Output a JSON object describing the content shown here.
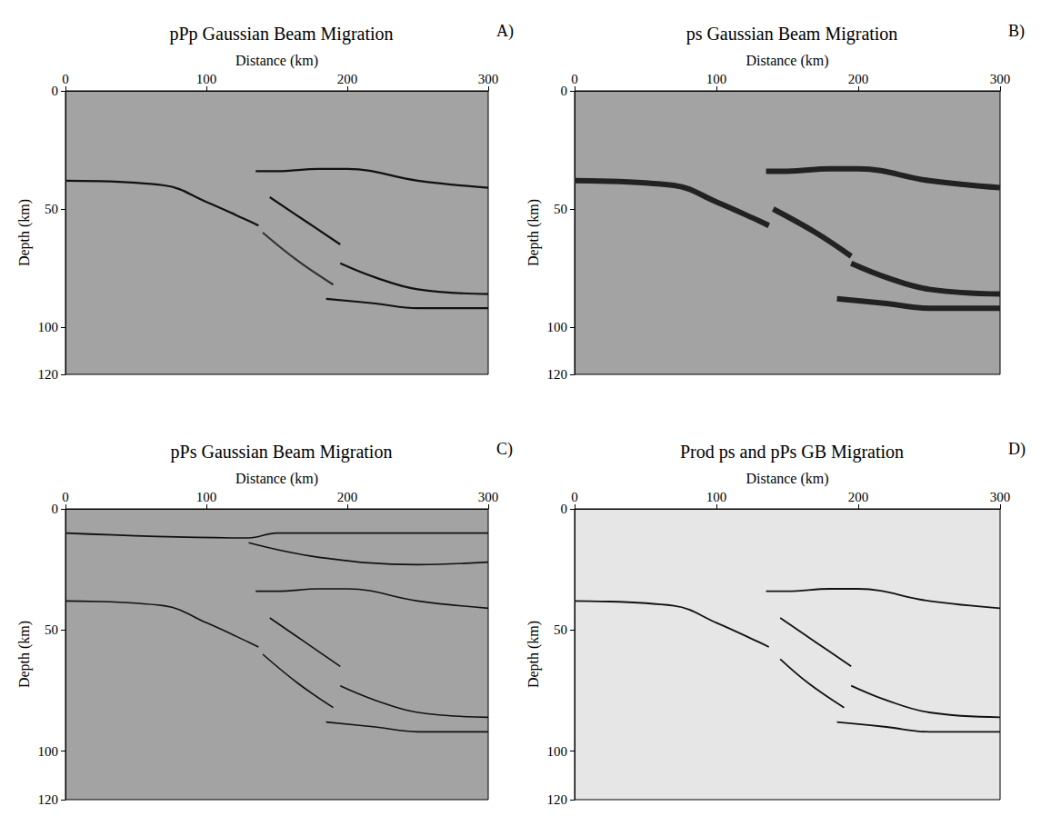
{
  "chart_data": [
    {
      "type": "line",
      "title": "pPp Gaussian Beam Migration",
      "panel": "A)",
      "x_label": "Distance (km)",
      "y_label": "Depth (km)",
      "xlim": [
        0,
        300
      ],
      "xticks": [
        0,
        100,
        200,
        300
      ],
      "ylim": [
        0,
        120
      ],
      "yticks": [
        0,
        50,
        100
      ],
      "series": [
        {
          "x": [
            0,
            70,
            100,
            130,
            137
          ],
          "values": [
            38,
            40,
            47,
            55,
            57
          ],
          "color": "#111111"
        },
        {
          "x": [
            135,
            150,
            180,
            200,
            250,
            300
          ],
          "values": [
            34,
            34,
            33,
            33,
            38,
            41
          ],
          "color": "#111111"
        },
        {
          "x": [
            145,
            170,
            195
          ],
          "values": [
            45,
            55,
            65
          ],
          "color": "#111111"
        },
        {
          "x": [
            195,
            220,
            250,
            300
          ],
          "values": [
            73,
            79,
            84,
            86
          ],
          "color": "#111111"
        },
        {
          "x": [
            140,
            165,
            190
          ],
          "values": [
            60,
            72,
            82
          ],
          "color": "#333333"
        },
        {
          "x": [
            185,
            220,
            250,
            300
          ],
          "values": [
            88,
            90,
            92,
            92
          ],
          "color": "#111111"
        }
      ]
    },
    {
      "type": "line",
      "title": "ps Gaussian Beam Migration",
      "panel": "B)",
      "x_label": "Distance (km)",
      "y_label": "Depth (km)",
      "xlim": [
        0,
        300
      ],
      "xticks": [
        0,
        100,
        200,
        300
      ],
      "ylim": [
        0,
        120
      ],
      "yticks": [
        0,
        50,
        100
      ],
      "series": [
        {
          "x": [
            0,
            70,
            100,
            130,
            137
          ],
          "values": [
            38,
            40,
            47,
            55,
            57
          ],
          "color": "#222222"
        },
        {
          "x": [
            135,
            150,
            180,
            200,
            250,
            300
          ],
          "values": [
            34,
            34,
            33,
            33,
            38,
            41
          ],
          "color": "#222222"
        },
        {
          "x": [
            140,
            170,
            195
          ],
          "values": [
            50,
            60,
            70
          ],
          "color": "#222222"
        },
        {
          "x": [
            195,
            220,
            250,
            300
          ],
          "values": [
            73,
            79,
            84,
            86
          ],
          "color": "#222222"
        },
        {
          "x": [
            185,
            220,
            250,
            300
          ],
          "values": [
            88,
            90,
            92,
            92
          ],
          "color": "#222222"
        }
      ]
    },
    {
      "type": "line",
      "title": "pPs Gaussian Beam Migration",
      "panel": "C)",
      "x_label": "Distance (km)",
      "y_label": "Depth (km)",
      "xlim": [
        0,
        300
      ],
      "xticks": [
        0,
        100,
        200,
        300
      ],
      "ylim": [
        0,
        120
      ],
      "yticks": [
        0,
        50,
        100
      ],
      "series": [
        {
          "x": [
            0,
            130,
            150,
            300
          ],
          "values": [
            10,
            12,
            10,
            10
          ],
          "color": "#111111"
        },
        {
          "x": [
            130,
            180,
            250,
            300
          ],
          "values": [
            14,
            20,
            23,
            22
          ],
          "color": "#111111"
        },
        {
          "x": [
            0,
            70,
            100,
            130,
            137
          ],
          "values": [
            38,
            40,
            47,
            55,
            57
          ],
          "color": "#111111"
        },
        {
          "x": [
            135,
            150,
            180,
            200,
            250,
            300
          ],
          "values": [
            34,
            34,
            33,
            33,
            38,
            41
          ],
          "color": "#111111"
        },
        {
          "x": [
            145,
            170,
            195
          ],
          "values": [
            45,
            55,
            65
          ],
          "color": "#111111"
        },
        {
          "x": [
            195,
            220,
            250,
            300
          ],
          "values": [
            73,
            79,
            84,
            86
          ],
          "color": "#111111"
        },
        {
          "x": [
            140,
            165,
            190
          ],
          "values": [
            60,
            72,
            82
          ],
          "color": "#111111"
        },
        {
          "x": [
            185,
            220,
            250,
            300
          ],
          "values": [
            88,
            90,
            92,
            92
          ],
          "color": "#111111"
        }
      ]
    },
    {
      "type": "line",
      "title": "Prod ps and pPs GB Migration",
      "panel": "D)",
      "x_label": "Distance (km)",
      "y_label": "Depth (km)",
      "xlim": [
        0,
        300
      ],
      "xticks": [
        0,
        100,
        200,
        300
      ],
      "ylim": [
        0,
        120
      ],
      "yticks": [
        0,
        50,
        100
      ],
      "series": [
        {
          "x": [
            0,
            70,
            100,
            130,
            137
          ],
          "values": [
            38,
            40,
            47,
            55,
            57
          ],
          "color": "#111111"
        },
        {
          "x": [
            135,
            150,
            180,
            200,
            250,
            300
          ],
          "values": [
            34,
            34,
            33,
            33,
            38,
            41
          ],
          "color": "#111111"
        },
        {
          "x": [
            145,
            170,
            195
          ],
          "values": [
            45,
            55,
            65
          ],
          "color": "#111111"
        },
        {
          "x": [
            195,
            220,
            250,
            300
          ],
          "values": [
            73,
            79,
            84,
            86
          ],
          "color": "#111111"
        },
        {
          "x": [
            145,
            165,
            190
          ],
          "values": [
            62,
            72,
            82
          ],
          "color": "#111111"
        },
        {
          "x": [
            185,
            220,
            250,
            300
          ],
          "values": [
            88,
            90,
            92,
            92
          ],
          "color": "#111111"
        }
      ]
    }
  ]
}
